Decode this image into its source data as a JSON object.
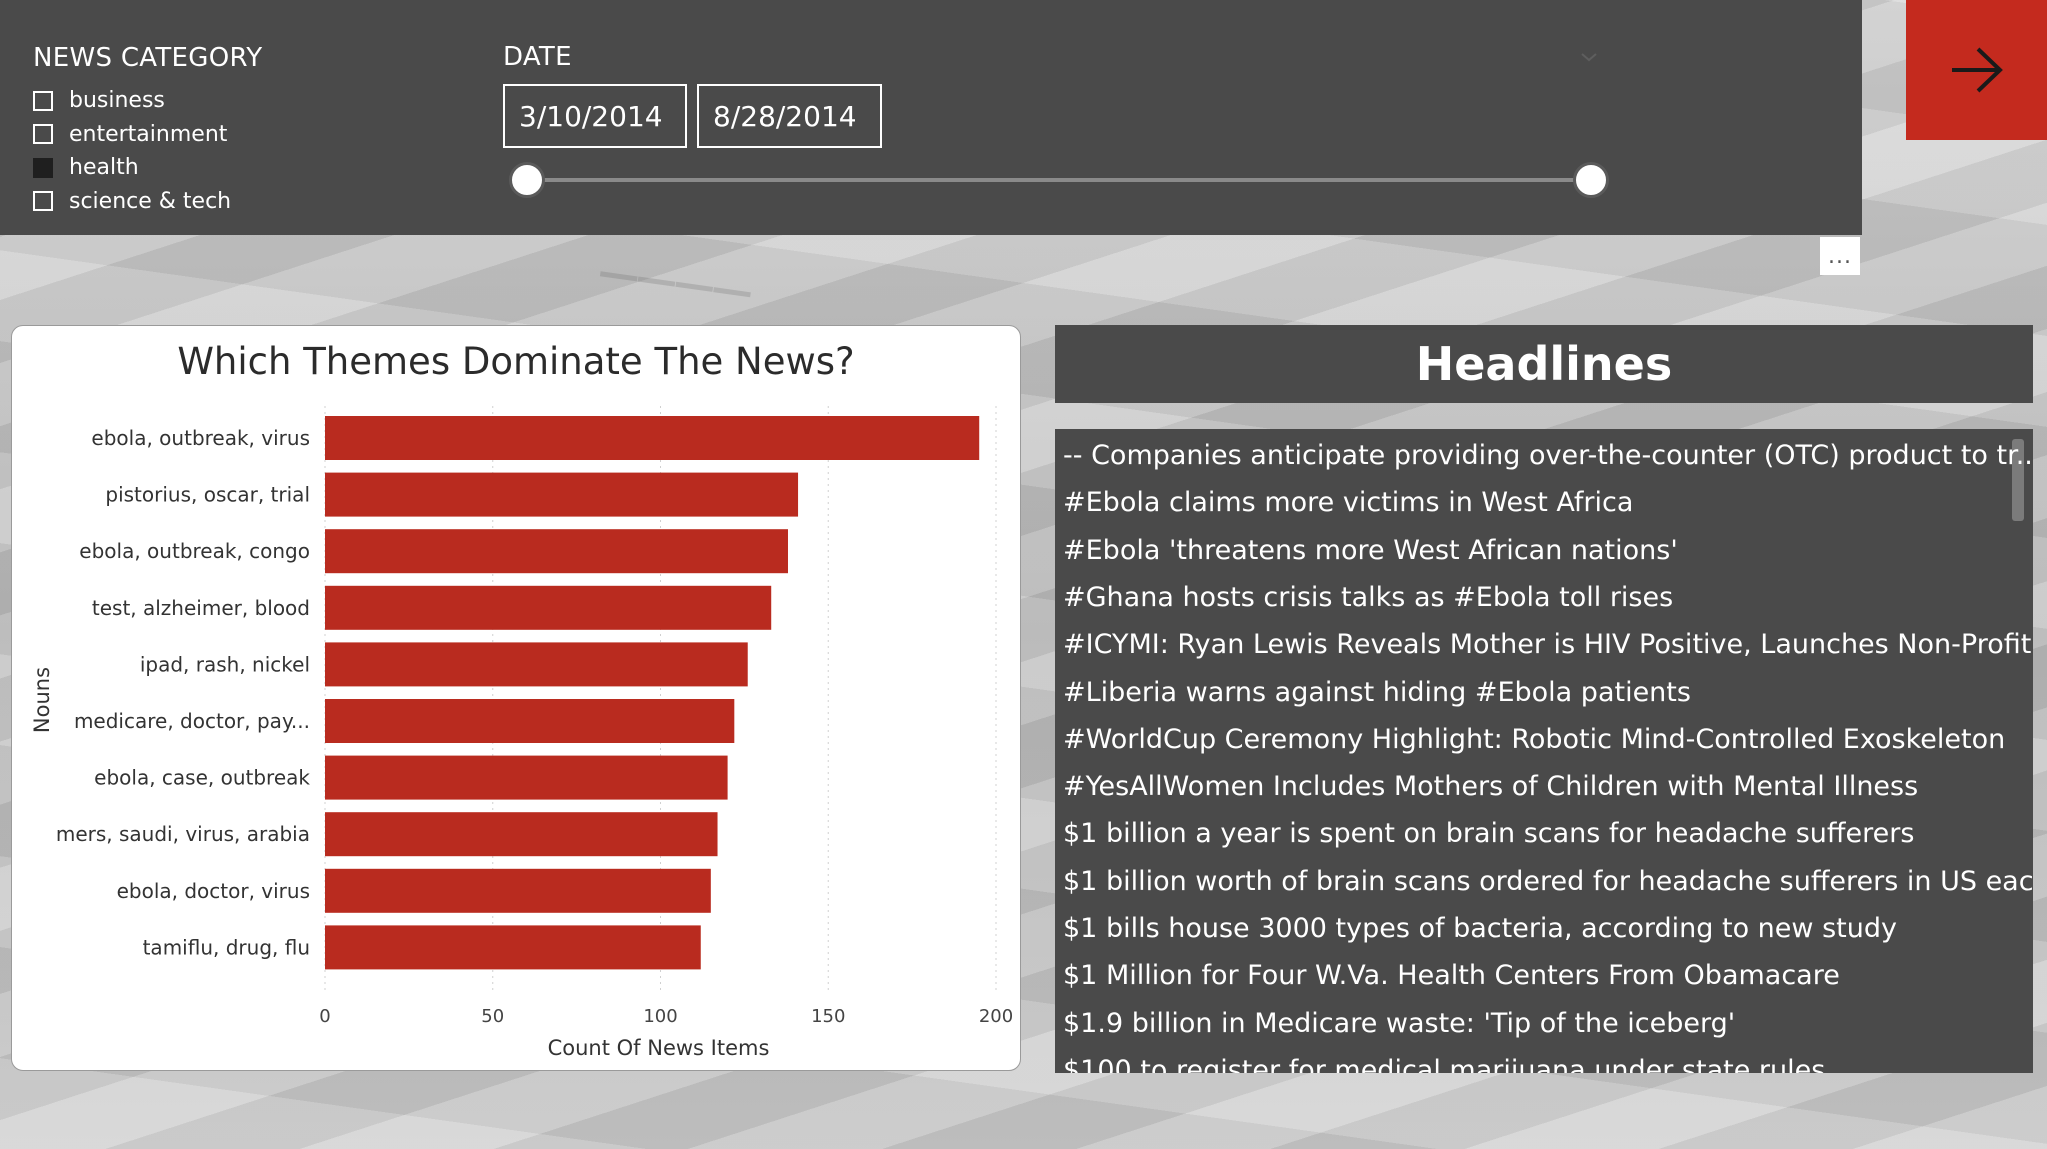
{
  "filters": {
    "category_title": "NEWS CATEGORY",
    "categories": [
      {
        "label": "business",
        "checked": false
      },
      {
        "label": "entertainment",
        "checked": false
      },
      {
        "label": "health",
        "checked": true
      },
      {
        "label": "science & tech",
        "checked": false
      }
    ],
    "date_title": "DATE",
    "date_start": "3/10/2014",
    "date_end": "8/28/2014"
  },
  "nav_button_icon": "arrow-right-icon",
  "more_options_label": "...",
  "colors": {
    "accent": "#c42a1e",
    "bar": "#b92b1f",
    "panel": "#4a4a4a"
  },
  "chart_data": {
    "type": "bar",
    "orientation": "horizontal",
    "title": "Which Themes Dominate The News?",
    "xlabel": "Count Of News Items",
    "ylabel": "Nouns",
    "categories": [
      "ebola, outbreak, virus",
      "pistorius, oscar, trial",
      "ebola, outbreak, congo",
      "test, alzheimer, blood",
      "ipad, rash, nickel",
      "medicare, doctor, pay...",
      "ebola, case, outbreak",
      "mers, saudi, virus, arabia",
      "ebola, doctor, virus",
      "tamiflu, drug, flu"
    ],
    "values": [
      195,
      141,
      138,
      133,
      126,
      122,
      120,
      117,
      115,
      112
    ],
    "xlim": [
      0,
      200
    ],
    "xticks": [
      0,
      50,
      100,
      150,
      200
    ],
    "grid": true
  },
  "headlines": {
    "title": "Headlines",
    "items": [
      "-- Companies anticipate providing over-the-counter (OTC) product to tr...",
      "#Ebola claims more victims in West Africa",
      "#Ebola 'threatens more West African nations'",
      "#Ghana hosts crisis talks as #Ebola toll rises",
      "#ICYMI: Ryan Lewis Reveals Mother is HIV Positive, Launches Non-Profit...",
      "#Liberia warns against hiding #Ebola patients",
      "#WorldCup Ceremony Highlight: Robotic Mind-Controlled Exoskeleton",
      "#YesAllWomen Includes Mothers of Children with Mental Illness",
      "$1 billion a year is spent on brain scans for headache sufferers",
      "$1 billion worth of brain scans ordered for headache sufferers in US eac...",
      "$1 bills house 3000 types of bacteria, according to new study",
      "$1 Million for Four W.Va. Health Centers From Obamacare",
      "$1.9 billion in Medicare waste: 'Tip of the iceberg'",
      "$100 to register for medical marijuana under state rules"
    ]
  }
}
